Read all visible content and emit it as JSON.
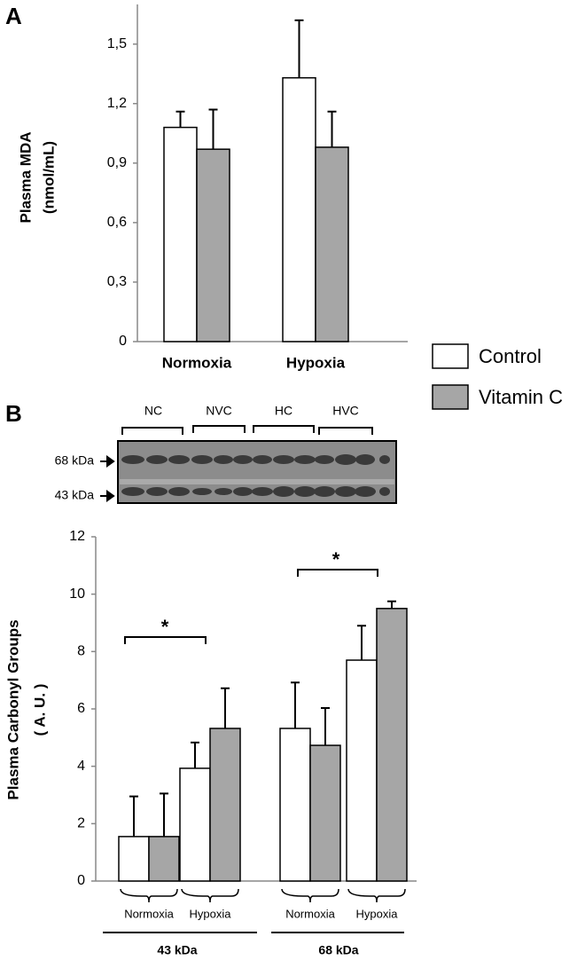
{
  "chart_data": [
    {
      "type": "bar",
      "panel": "A",
      "ylabel": [
        "Plasma MDA",
        "(nmol/mL)"
      ],
      "categories": [
        "Normoxia",
        "Hypoxia"
      ],
      "series": [
        {
          "name": "Control",
          "color": "#ffffff",
          "values": [
            1.08,
            1.33
          ],
          "errors": [
            0.08,
            0.29
          ]
        },
        {
          "name": "Vitamin C",
          "color": "#a6a6a6",
          "values": [
            0.97,
            0.98
          ],
          "errors": [
            0.2,
            0.18
          ]
        }
      ],
      "ylim": [
        0,
        1.7
      ],
      "yticks": [
        0,
        {
          "value": 0.3,
          "label": "0,3"
        },
        {
          "value": 0.6,
          "label": "0,6"
        },
        {
          "value": 0.9,
          "label": "0,9"
        },
        {
          "value": 1.2,
          "label": "1,2"
        },
        {
          "value": 1.5,
          "label": "1,5"
        }
      ]
    },
    {
      "type": "bar",
      "panel": "B",
      "ylabel": [
        "Plasma Carbonyl Groups",
        "( A. U. )"
      ],
      "blot_lanes": [
        "NC",
        "NVC",
        "HC",
        "HVC"
      ],
      "blot_bands": [
        "68 kDa",
        "43 kDa"
      ],
      "categories": [
        "Normoxia",
        "Hypoxia",
        "Normoxia",
        "Hypoxia"
      ],
      "groups": [
        "43 kDa",
        "68 kDa"
      ],
      "series": [
        {
          "color": "#ffffff",
          "values": [
            1.55,
            3.93,
            5.32,
            7.7
          ],
          "errors": [
            1.4,
            0.9,
            1.6,
            1.2
          ]
        },
        {
          "color": "#a6a6a6",
          "values": [
            1.55,
            5.32,
            4.73,
            9.5
          ],
          "errors": [
            1.5,
            1.4,
            1.3,
            0.25
          ]
        }
      ],
      "annotations": [
        "*",
        "*"
      ],
      "ylim": [
        0,
        12
      ],
      "yticks": [
        0,
        2,
        4,
        6,
        8,
        10,
        12
      ]
    }
  ]
}
